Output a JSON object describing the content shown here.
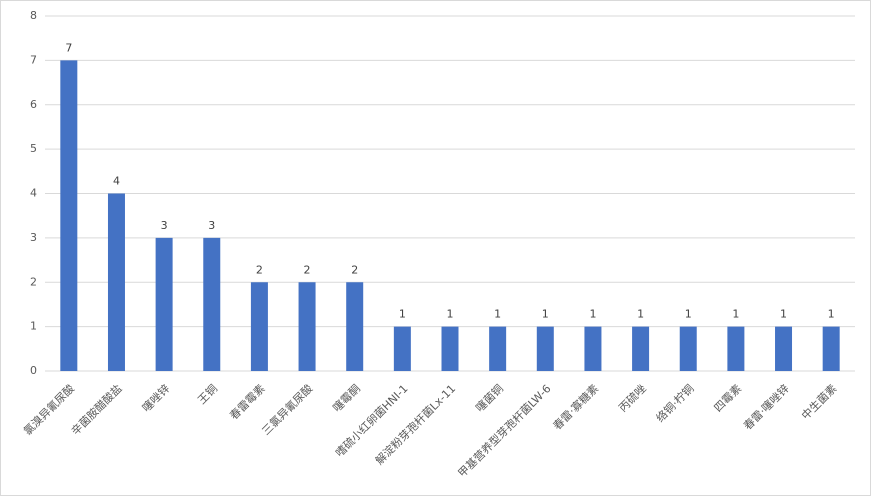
{
  "chart_data": {
    "type": "bar",
    "categories": [
      "氯溴异氰尿酸",
      "辛菌胺醋酸盐",
      "噻唑锌",
      "王铜",
      "春雷霉素",
      "三氯异氰尿酸",
      "噻霉酮",
      "嗜硫小红卵菌HNI-1",
      "解淀粉芽孢杆菌Lx-11",
      "噻菌铜",
      "甲基营养型芽孢杆菌LW-6",
      "春雷·寡糖素",
      "丙硫唑",
      "络铜·柠铜",
      "四霉素",
      "春雷·噻唑锌",
      "中生菌素"
    ],
    "values": [
      7,
      4,
      3,
      3,
      2,
      2,
      2,
      1,
      1,
      1,
      1,
      1,
      1,
      1,
      1,
      1,
      1
    ],
    "color": "#4472c4",
    "ylim": [
      0,
      8
    ],
    "yticks": [
      0,
      1,
      2,
      3,
      4,
      5,
      6,
      7,
      8
    ],
    "grid": true,
    "data_labels": true
  }
}
